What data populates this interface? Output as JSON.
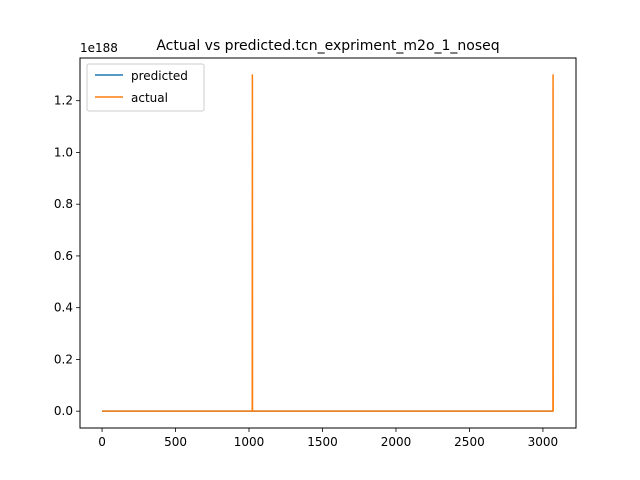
{
  "chart_data": {
    "type": "line",
    "title": "Actual vs predicted.tcn_expriment_m2o_1_noseq",
    "offset_label": "1e188",
    "xlabel": "",
    "ylabel": "",
    "xlim": [
      -150,
      3225
    ],
    "ylim": [
      -0.065,
      1.365
    ],
    "xticks": [
      0,
      500,
      1000,
      1500,
      2000,
      2500,
      3000
    ],
    "xtick_labels": [
      "0",
      "500",
      "1000",
      "1500",
      "2000",
      "2500",
      "3000"
    ],
    "yticks": [
      0.0,
      0.2,
      0.4,
      0.6,
      0.8,
      1.0,
      1.2
    ],
    "ytick_labels": [
      "0.0",
      "0.2",
      "0.4",
      "0.6",
      "0.8",
      "1.0",
      "1.2"
    ],
    "legend_position": "top-left",
    "grid": false,
    "series": [
      {
        "name": "predicted",
        "color": "#1f77b4",
        "x": [
          0,
          1022,
          1023,
          1024,
          3068,
          3069,
          3070
        ],
        "y": [
          0,
          0,
          0,
          0,
          0,
          0,
          0
        ]
      },
      {
        "name": "actual",
        "color": "#ff7f0e",
        "x": [
          0,
          1022,
          1023,
          1024,
          3068,
          3069,
          3070
        ],
        "y": [
          0,
          0,
          1.3,
          0,
          0,
          1.3,
          0
        ]
      }
    ]
  }
}
